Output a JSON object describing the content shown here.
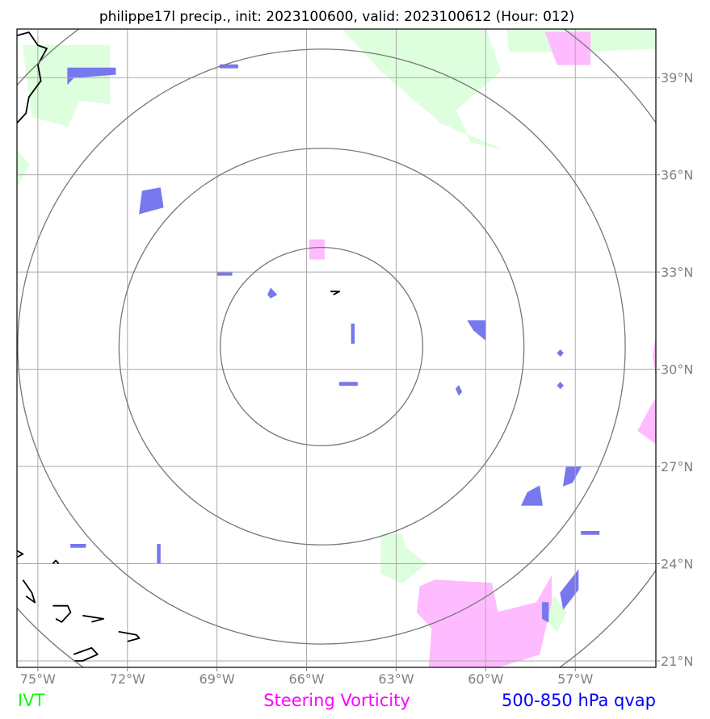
{
  "chart_data": {
    "type": "map",
    "title": "philippe17l precip., init: 2023100600, valid: 2023100612 (Hour: 012)",
    "lon_range": [
      -75.7,
      -54.3
    ],
    "lat_range": [
      20.8,
      40.5
    ],
    "lon_ticks": [
      -75,
      -72,
      -69,
      -66,
      -63,
      -60,
      -57
    ],
    "lat_ticks": [
      21,
      24,
      27,
      30,
      33,
      36,
      39
    ],
    "lon_tick_labels": [
      "75°W",
      "72°W",
      "69°W",
      "66°W",
      "63°W",
      "60°W",
      "57°W"
    ],
    "lat_tick_labels": [
      "21°N",
      "24°N",
      "27°N",
      "30°N",
      "33°N",
      "36°N",
      "39°N"
    ],
    "grid": true,
    "storm_center": [
      -65.5,
      30.7
    ],
    "range_rings_deg": [
      3.0,
      6.0,
      9.0,
      12.0
    ],
    "layers": [
      {
        "name": "IVT",
        "color": "#00ff00",
        "fill": "#ddffdd",
        "regions": [
          [
            [
              -64.8,
              40.5
            ],
            [
              -60.0,
              40.5
            ],
            [
              -59.5,
              39.2
            ],
            [
              -61.0,
              38.0
            ],
            [
              -60.5,
              37.0
            ],
            [
              -59.5,
              36.8
            ],
            [
              -61.5,
              37.6
            ],
            [
              -62.5,
              38.4
            ],
            [
              -63.5,
              39.2
            ]
          ],
          [
            [
              -75.5,
              40.0
            ],
            [
              -72.6,
              40.0
            ],
            [
              -72.6,
              38.2
            ],
            [
              -73.6,
              38.3
            ],
            [
              -74.0,
              37.5
            ],
            [
              -75.2,
              37.8
            ]
          ],
          [
            [
              -59.3,
              40.5
            ],
            [
              -54.3,
              40.5
            ],
            [
              -54.3,
              39.9
            ],
            [
              -57.0,
              39.8
            ],
            [
              -59.2,
              39.8
            ]
          ],
          [
            [
              -75.7,
              36.8
            ],
            [
              -75.3,
              36.3
            ],
            [
              -75.7,
              35.6
            ]
          ],
          [
            [
              -63.5,
              24.9
            ],
            [
              -62.8,
              24.9
            ],
            [
              -62.7,
              24.5
            ],
            [
              -62.0,
              24.0
            ],
            [
              -62.8,
              23.4
            ],
            [
              -63.5,
              23.7
            ]
          ],
          [
            [
              -57.7,
              23.0
            ],
            [
              -57.3,
              22.5
            ],
            [
              -57.6,
              21.9
            ],
            [
              -58.1,
              22.4
            ]
          ]
        ]
      },
      {
        "name": "Steering Vorticity",
        "color": "#ff00ff",
        "fill": "#ffbbff",
        "regions": [
          [
            [
              -62.2,
              23.3
            ],
            [
              -61.7,
              23.5
            ],
            [
              -59.8,
              23.4
            ],
            [
              -59.6,
              22.5
            ],
            [
              -58.3,
              22.8
            ],
            [
              -57.8,
              23.6
            ],
            [
              -57.8,
              22.8
            ],
            [
              -58.2,
              21.2
            ],
            [
              -59.6,
              20.8
            ],
            [
              -61.9,
              20.8
            ],
            [
              -61.8,
              22.0
            ],
            [
              -62.3,
              22.5
            ]
          ],
          [
            [
              -58.0,
              40.4
            ],
            [
              -56.5,
              40.4
            ],
            [
              -56.5,
              39.4
            ],
            [
              -57.6,
              39.4
            ]
          ],
          [
            [
              -65.9,
              34.0
            ],
            [
              -65.4,
              34.0
            ],
            [
              -65.4,
              33.4
            ],
            [
              -65.9,
              33.4
            ]
          ],
          [
            [
              -54.5,
              28.8
            ],
            [
              -54.3,
              29.1
            ],
            [
              -54.3,
              27.7
            ],
            [
              -54.9,
              28.1
            ]
          ],
          [
            [
              -54.3,
              31.0
            ],
            [
              -54.3,
              29.8
            ],
            [
              -54.4,
              30.4
            ]
          ]
        ]
      },
      {
        "name": "500-850 hPa qvap",
        "color": "#0000ff",
        "fill": "#7777ee",
        "regions": [
          [
            [
              -74.0,
              39.3
            ],
            [
              -72.4,
              39.3
            ],
            [
              -72.4,
              39.1
            ],
            [
              -73.8,
              39.0
            ],
            [
              -74.0,
              38.8
            ]
          ],
          [
            [
              -71.5,
              35.5
            ],
            [
              -70.9,
              35.6
            ],
            [
              -70.8,
              35.0
            ],
            [
              -71.6,
              34.8
            ]
          ],
          [
            [
              -68.9,
              39.4
            ],
            [
              -68.3,
              39.4
            ],
            [
              -68.3,
              39.3
            ],
            [
              -68.9,
              39.3
            ]
          ],
          [
            [
              -60.6,
              31.5
            ],
            [
              -60.0,
              31.5
            ],
            [
              -60.0,
              30.9
            ],
            [
              -60.4,
              31.2
            ]
          ],
          [
            [
              -57.3,
              27.0
            ],
            [
              -56.8,
              27.0
            ],
            [
              -57.1,
              26.5
            ],
            [
              -57.4,
              26.4
            ]
          ],
          [
            [
              -58.6,
              26.2
            ],
            [
              -58.2,
              26.4
            ],
            [
              -58.1,
              25.8
            ],
            [
              -58.8,
              25.8
            ]
          ],
          [
            [
              -57.5,
              23.1
            ],
            [
              -56.9,
              23.8
            ],
            [
              -56.9,
              23.2
            ],
            [
              -57.4,
              22.6
            ]
          ],
          [
            [
              -56.8,
              25.0
            ],
            [
              -56.2,
              25.0
            ],
            [
              -56.2,
              24.9
            ],
            [
              -56.8,
              24.9
            ]
          ],
          [
            [
              -61.0,
              29.4
            ],
            [
              -60.9,
              29.5
            ],
            [
              -60.8,
              29.3
            ],
            [
              -60.9,
              29.2
            ]
          ],
          [
            [
              -58.1,
              22.8
            ],
            [
              -57.9,
              22.8
            ],
            [
              -57.9,
              22.2
            ],
            [
              -58.1,
              22.3
            ]
          ],
          [
            [
              -64.5,
              31.4
            ],
            [
              -64.4,
              31.4
            ],
            [
              -64.4,
              30.8
            ],
            [
              -64.5,
              30.8
            ]
          ],
          [
            [
              -73.9,
              24.6
            ],
            [
              -73.4,
              24.6
            ],
            [
              -73.4,
              24.5
            ],
            [
              -73.9,
              24.5
            ]
          ],
          [
            [
              -64.9,
              29.6
            ],
            [
              -64.3,
              29.6
            ],
            [
              -64.3,
              29.5
            ],
            [
              -64.9,
              29.5
            ]
          ],
          [
            [
              -69.0,
              33.0
            ],
            [
              -68.5,
              33.0
            ],
            [
              -68.5,
              32.9
            ],
            [
              -69.0,
              32.9
            ]
          ],
          [
            [
              -71.0,
              24.6
            ],
            [
              -70.9,
              24.6
            ],
            [
              -70.9,
              24.0
            ],
            [
              -71.0,
              24.0
            ]
          ],
          [
            [
              -67.2,
              32.5
            ],
            [
              -67.0,
              32.3
            ],
            [
              -67.2,
              32.2
            ],
            [
              -67.3,
              32.3
            ]
          ],
          [
            [
              -57.5,
              29.6
            ],
            [
              -57.4,
              29.5
            ],
            [
              -57.5,
              29.4
            ],
            [
              -57.6,
              29.5
            ]
          ],
          [
            [
              -57.5,
              30.6
            ],
            [
              -57.4,
              30.5
            ],
            [
              -57.5,
              30.4
            ],
            [
              -57.6,
              30.5
            ]
          ]
        ]
      }
    ],
    "coastlines": [
      [
        [
          -75.7,
          40.3
        ],
        [
          -75.3,
          40.4
        ],
        [
          -75.0,
          40.0
        ],
        [
          -74.7,
          39.9
        ],
        [
          -75.0,
          39.4
        ],
        [
          -74.9,
          38.9
        ],
        [
          -75.3,
          38.4
        ],
        [
          -75.4,
          37.9
        ],
        [
          -75.7,
          37.6
        ]
      ],
      [
        [
          -75.7,
          24.4
        ],
        [
          -75.5,
          24.3
        ],
        [
          -75.7,
          24.2
        ]
      ],
      [
        [
          -75.5,
          23.5
        ],
        [
          -75.2,
          23.1
        ],
        [
          -75.1,
          22.8
        ],
        [
          -75.4,
          23.0
        ]
      ],
      [
        [
          -74.5,
          22.7
        ],
        [
          -74.0,
          22.7
        ],
        [
          -73.9,
          22.5
        ],
        [
          -74.2,
          22.2
        ],
        [
          -74.4,
          22.3
        ]
      ],
      [
        [
          -73.5,
          22.4
        ],
        [
          -72.8,
          22.3
        ],
        [
          -73.2,
          22.2
        ]
      ],
      [
        [
          -72.3,
          21.9
        ],
        [
          -71.7,
          21.8
        ],
        [
          -71.6,
          21.7
        ],
        [
          -72.0,
          21.6
        ]
      ],
      [
        [
          -73.8,
          21.2
        ],
        [
          -73.2,
          21.4
        ],
        [
          -73.0,
          21.2
        ],
        [
          -73.5,
          21.0
        ],
        [
          -73.8,
          21.0
        ]
      ],
      [
        [
          -74.5,
          24.0
        ],
        [
          -74.4,
          24.1
        ],
        [
          -74.3,
          24.0
        ]
      ],
      [
        [
          -65.2,
          32.4
        ],
        [
          -64.9,
          32.4
        ],
        [
          -65.1,
          32.3
        ]
      ]
    ]
  },
  "legend": {
    "ivt": "IVT",
    "vorticity": "Steering Vorticity",
    "qvap": "500-850 hPa qvap"
  },
  "colors": {
    "ivt": "#00ff00",
    "vorticity": "#ff00ff",
    "qvap": "#0000ff",
    "grid": "#aaaaaa",
    "rings": "#777777"
  }
}
